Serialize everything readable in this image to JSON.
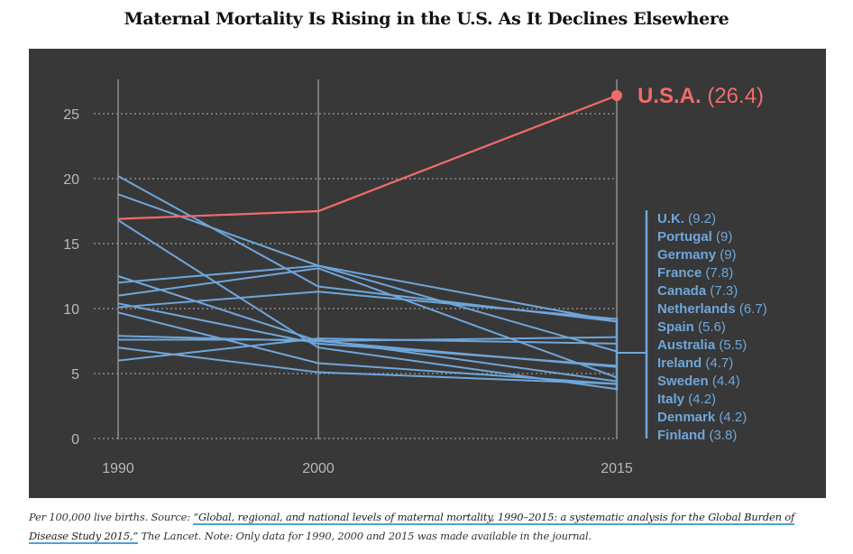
{
  "chart_data": {
    "type": "line",
    "title": "Maternal Mortality Is Rising in the U.S. As It Declines Elsewhere",
    "xlabel": "",
    "ylabel": "",
    "x": [
      1990,
      2000,
      2015
    ],
    "x_tick_labels": [
      "1990",
      "2000",
      "2015"
    ],
    "y_ticks": [
      0,
      5,
      10,
      15,
      20,
      25
    ],
    "y_tick_labels": [
      "0",
      "5",
      "10",
      "15",
      "20",
      "25"
    ],
    "ylim": [
      0,
      25
    ],
    "grid": "horizontal-dotted",
    "legend": "right",
    "highlight": {
      "name": "U.S.A.",
      "label_value": "(26.4)",
      "values": [
        16.9,
        17.5,
        26.4
      ],
      "color": "#f26b6b"
    },
    "series_color": "#6fa6da",
    "series": [
      {
        "name": "U.K.",
        "label_value": "(9.2)",
        "values": [
          10.1,
          11.3,
          9.2
        ]
      },
      {
        "name": "Portugal",
        "label_value": "(9)",
        "values": [
          20.2,
          11.7,
          9.0
        ]
      },
      {
        "name": "Germany",
        "label_value": "(9)",
        "values": [
          18.8,
          13.3,
          9.0
        ]
      },
      {
        "name": "France",
        "label_value": "(7.8)",
        "values": [
          12.5,
          7.5,
          7.8
        ]
      },
      {
        "name": "Canada",
        "label_value": "(7.3)",
        "values": [
          6.0,
          7.7,
          7.3
        ]
      },
      {
        "name": "Netherlands",
        "label_value": "(6.7)",
        "values": [
          12.0,
          13.3,
          6.7
        ]
      },
      {
        "name": "Spain",
        "label_value": "(5.6)",
        "values": [
          10.4,
          7.3,
          5.6
        ]
      },
      {
        "name": "Australia",
        "label_value": "(5.5)",
        "values": [
          7.9,
          7.5,
          5.5
        ]
      },
      {
        "name": "Ireland",
        "label_value": "(4.7)",
        "values": [
          11.0,
          13.1,
          4.7
        ]
      },
      {
        "name": "Sweden",
        "label_value": "(4.4)",
        "values": [
          7.6,
          7.6,
          4.4
        ]
      },
      {
        "name": "Italy",
        "label_value": "(4.2)",
        "values": [
          9.7,
          5.8,
          4.2
        ]
      },
      {
        "name": "Denmark",
        "label_value": "(4.2)",
        "values": [
          7.0,
          5.1,
          4.2
        ]
      },
      {
        "name": "Finland",
        "label_value": "(3.8)",
        "values": [
          16.8,
          7.0,
          3.8
        ]
      }
    ]
  },
  "caption": {
    "prefix": "Per 100,000 live births. Source: ",
    "link_text": "“Global, regional, and national levels of maternal mortality, 1990–2015: a systematic analysis for the Global Burden of Disease Study 2015,”",
    "suffix": " The Lancet. Note: Only data for 1990, 2000 and 2015 was made available in the journal."
  }
}
